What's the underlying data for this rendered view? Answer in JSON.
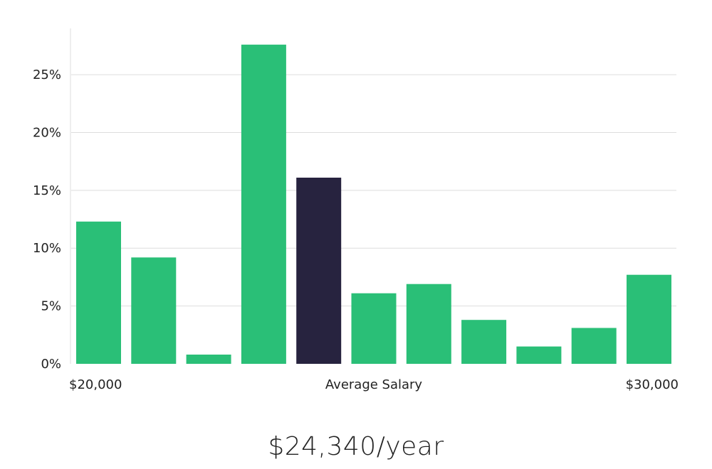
{
  "chart_data": {
    "type": "bar",
    "values": [
      12.3,
      9.2,
      0.8,
      27.6,
      16.1,
      6.1,
      6.9,
      3.8,
      1.5,
      3.1,
      7.7
    ],
    "highlight_index": 4,
    "ylim": [
      0,
      29
    ],
    "y_ticks": [
      0,
      5,
      10,
      15,
      20,
      25
    ],
    "y_tick_format": "%",
    "x_range": [
      20000,
      30000
    ],
    "x_min_label": "$20,000",
    "x_center_label": "Average Salary",
    "x_max_label": "$30,000",
    "grid": true,
    "colors": {
      "bar": "#2abf77",
      "highlight": "#27233f"
    }
  },
  "salary": {
    "display": "$24,340/year"
  }
}
